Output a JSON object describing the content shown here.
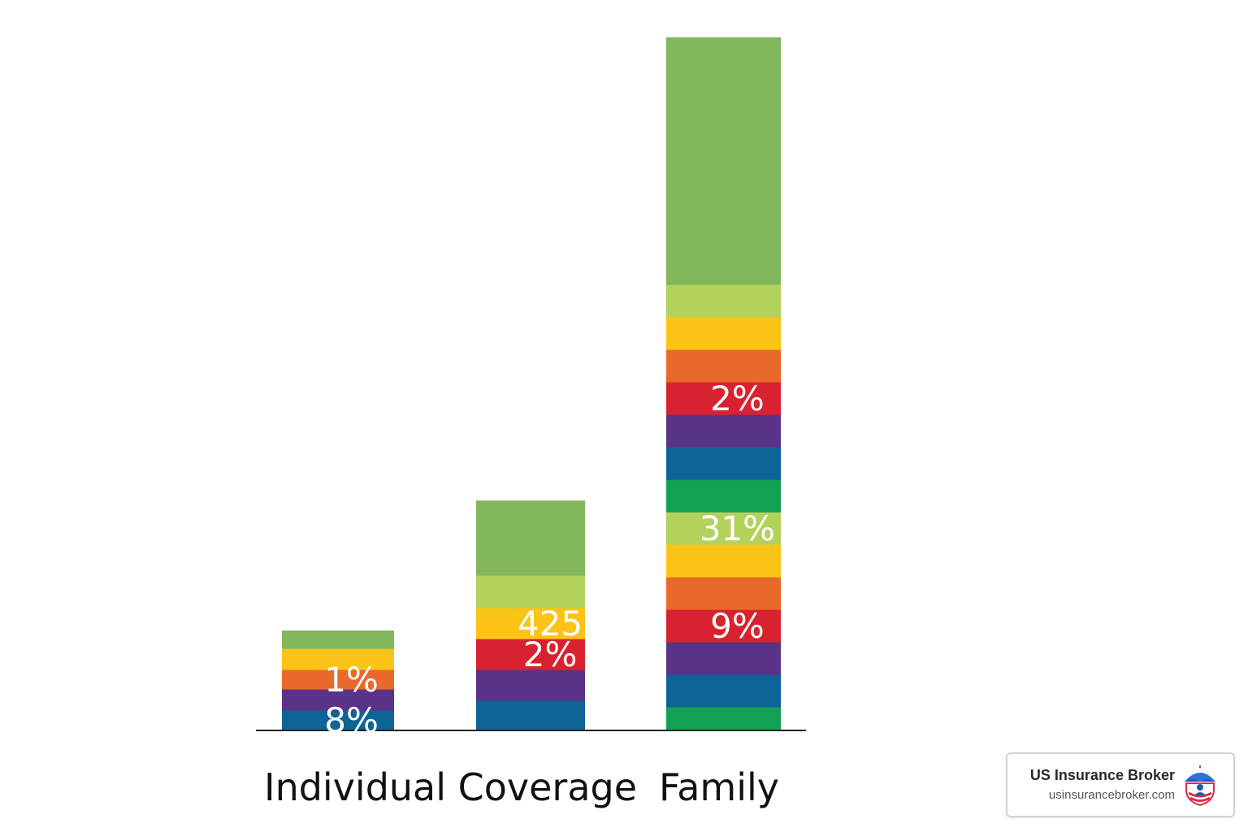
{
  "chart_data": {
    "type": "bar",
    "stacked": true,
    "title": "",
    "xlabel": "",
    "ylabel": "",
    "grid": false,
    "ylim": [
      0,
      21.3
    ],
    "categories": [
      "Individual Coverage",
      "Family"
    ],
    "bars": [
      {
        "category": "Individual Coverage",
        "segments": [
          {
            "value": 0.6,
            "color": "#0e6397",
            "label": "8%"
          },
          {
            "value": 0.65,
            "color": "#5a3287",
            "label": ""
          },
          {
            "value": 0.6,
            "color": "#e8692b",
            "label": "1%"
          },
          {
            "value": 0.65,
            "color": "#fbc416",
            "label": ""
          },
          {
            "value": 0.55,
            "color": "#82b75c",
            "label": ""
          }
        ]
      },
      {
        "category": "",
        "segments": [
          {
            "value": 0.9,
            "color": "#0e6397",
            "label": ""
          },
          {
            "value": 0.95,
            "color": "#5a3287",
            "label": ""
          },
          {
            "value": 0.95,
            "color": "#d9222f",
            "label": "2%"
          },
          {
            "value": 0.95,
            "color": "#fbc416",
            "label": "425"
          },
          {
            "value": 1.0,
            "color": "#b3d25b",
            "label": ""
          },
          {
            "value": 2.3,
            "color": "#82b75c",
            "label": ""
          }
        ]
      },
      {
        "category": "Family",
        "segments": [
          {
            "value": 0.7,
            "color": "#13a155",
            "label": ""
          },
          {
            "value": 1.0,
            "color": "#0e6397",
            "label": ""
          },
          {
            "value": 1.0,
            "color": "#5a3287",
            "label": ""
          },
          {
            "value": 1.0,
            "color": "#d9222f",
            "label": "9%"
          },
          {
            "value": 1.0,
            "color": "#e8692b",
            "label": ""
          },
          {
            "value": 1.0,
            "color": "#fbc416",
            "label": ""
          },
          {
            "value": 1.0,
            "color": "#b3d25b",
            "label": "31%"
          },
          {
            "value": 1.0,
            "color": "#13a155",
            "label": ""
          },
          {
            "value": 1.0,
            "color": "#0e6397",
            "label": ""
          },
          {
            "value": 1.0,
            "color": "#5a3287",
            "label": ""
          },
          {
            "value": 1.0,
            "color": "#d9222f",
            "label": "2%"
          },
          {
            "value": 1.0,
            "color": "#e8692b",
            "label": ""
          },
          {
            "value": 1.0,
            "color": "#fbc416",
            "label": ""
          },
          {
            "value": 1.0,
            "color": "#b3d25b",
            "label": ""
          },
          {
            "value": 7.6,
            "color": "#82b75c",
            "label": ""
          }
        ]
      }
    ]
  },
  "badge": {
    "title": "US Insurance Broker",
    "url": "usinsurancebroker.com",
    "logo_icon": "umbrella-shield-icon"
  }
}
